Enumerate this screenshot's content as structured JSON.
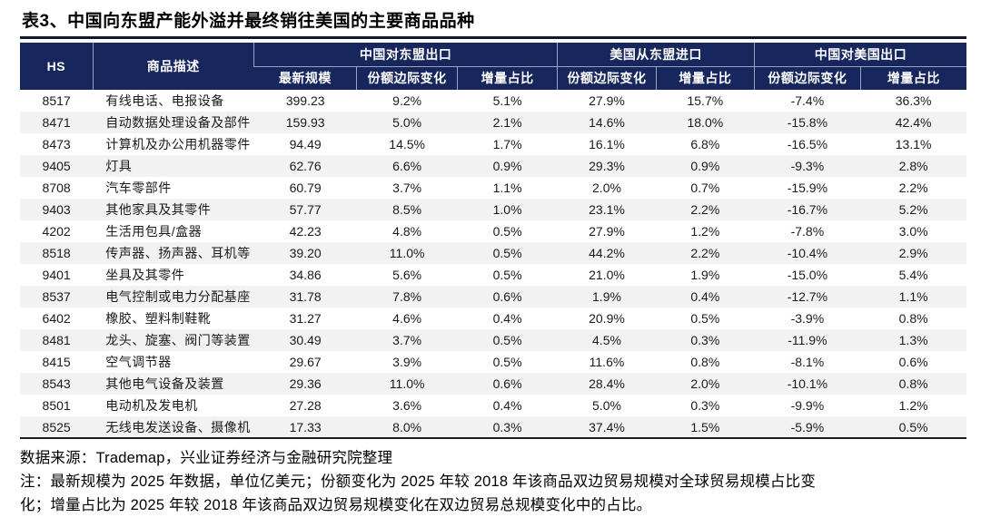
{
  "title": "表3、中国向东盟产能外溢并最终销往美国的主要商品品种",
  "colors": {
    "header_bg": "#17265C",
    "header_divider": "#9AA4BF",
    "stripe": "#F2F2F2",
    "rule": "#10182B",
    "text": "#1A1A1A"
  },
  "table": {
    "header": {
      "hs": "HS",
      "desc": "商品描述",
      "groups": [
        {
          "label": "中国对东盟出口",
          "cols": [
            "最新规模",
            "份额边际变化",
            "增量占比"
          ]
        },
        {
          "label": "美国从东盟进口",
          "cols": [
            "份额边际变化",
            "增量占比"
          ]
        },
        {
          "label": "中国对美国出口",
          "cols": [
            "份额边际变化",
            "增量占比"
          ]
        }
      ]
    },
    "rows": [
      [
        "8517",
        "有线电话、电报设备",
        "399.23",
        "9.2%",
        "5.1%",
        "27.9%",
        "15.7%",
        "-7.4%",
        "36.3%"
      ],
      [
        "8471",
        "自动数据处理设备及部件",
        "159.93",
        "5.0%",
        "2.1%",
        "14.6%",
        "18.0%",
        "-15.8%",
        "42.4%"
      ],
      [
        "8473",
        "计算机及办公用机器零件",
        "94.49",
        "14.5%",
        "1.7%",
        "16.1%",
        "6.8%",
        "-16.5%",
        "13.1%"
      ],
      [
        "9405",
        "灯具",
        "62.76",
        "6.6%",
        "0.9%",
        "29.3%",
        "0.9%",
        "-9.3%",
        "2.8%"
      ],
      [
        "8708",
        "汽车零部件",
        "60.79",
        "3.7%",
        "1.1%",
        "2.0%",
        "0.7%",
        "-15.9%",
        "2.2%"
      ],
      [
        "9403",
        "其他家具及其零件",
        "57.77",
        "8.5%",
        "1.0%",
        "23.1%",
        "2.2%",
        "-16.7%",
        "5.2%"
      ],
      [
        "4202",
        "生活用包具/盒器",
        "42.23",
        "4.8%",
        "0.5%",
        "27.9%",
        "1.2%",
        "-7.8%",
        "3.0%"
      ],
      [
        "8518",
        "传声器、扬声器、耳机等",
        "39.20",
        "11.0%",
        "0.5%",
        "44.2%",
        "2.2%",
        "-10.4%",
        "2.9%"
      ],
      [
        "9401",
        "坐具及其零件",
        "34.86",
        "5.6%",
        "0.5%",
        "21.0%",
        "1.9%",
        "-15.0%",
        "5.4%"
      ],
      [
        "8537",
        "电气控制或电力分配基座",
        "31.78",
        "7.8%",
        "0.6%",
        "1.9%",
        "0.4%",
        "-12.7%",
        "1.1%"
      ],
      [
        "6402",
        "橡胶、塑料制鞋靴",
        "31.27",
        "4.6%",
        "0.4%",
        "20.9%",
        "0.5%",
        "-3.9%",
        "0.8%"
      ],
      [
        "8481",
        "龙头、旋塞、阀门等装置",
        "30.49",
        "3.7%",
        "0.5%",
        "4.5%",
        "0.3%",
        "-11.9%",
        "1.3%"
      ],
      [
        "8415",
        "空气调节器",
        "29.67",
        "3.9%",
        "0.5%",
        "11.6%",
        "0.8%",
        "-8.1%",
        "0.6%"
      ],
      [
        "8543",
        "其他电气设备及装置",
        "29.36",
        "11.0%",
        "0.6%",
        "28.4%",
        "2.0%",
        "-10.1%",
        "0.8%"
      ],
      [
        "8501",
        "电动机及发电机",
        "27.28",
        "3.6%",
        "0.4%",
        "5.0%",
        "0.3%",
        "-9.9%",
        "1.2%"
      ],
      [
        "8525",
        "无线电发送设备、摄像机",
        "17.33",
        "8.0%",
        "0.3%",
        "37.4%",
        "1.5%",
        "-5.9%",
        "0.5%"
      ]
    ]
  },
  "footer": {
    "source": "数据来源：Trademap，兴业证券经济与金融研究院整理",
    "note_lines": [
      "注：最新规模为 2025 年数据，单位亿美元；份额变化为 2025 年较 2018 年该商品双边贸易规模对全球贸易规模占比变",
      "化；增量占比为 2025 年较 2018 年该商品双边贸易规模变化在双边贸易总规模变化中的占比。"
    ]
  }
}
